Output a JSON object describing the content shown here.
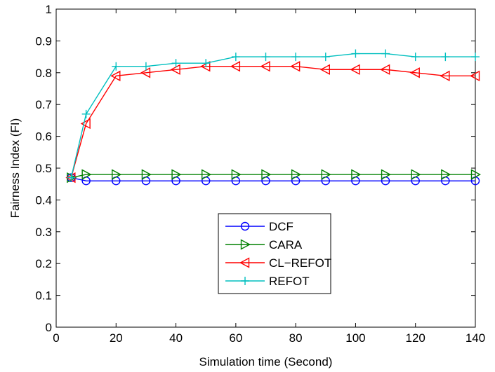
{
  "chart_data": {
    "type": "line",
    "title": "",
    "xlabel": "Simulation time (Second)",
    "ylabel": "Fairness Index (FI)",
    "xlim": [
      0,
      140
    ],
    "ylim": [
      0,
      1
    ],
    "x_ticks": [
      0,
      20,
      40,
      60,
      80,
      100,
      120,
      140
    ],
    "y_ticks": [
      0,
      0.1,
      0.2,
      0.3,
      0.4,
      0.5,
      0.6,
      0.7,
      0.8,
      0.9,
      1
    ],
    "x_tick_labels": [
      "0",
      "20",
      "40",
      "60",
      "80",
      "100",
      "120",
      "140"
    ],
    "y_tick_labels": [
      "0",
      "0.1",
      "0.2",
      "0.3",
      "0.4",
      "0.5",
      "0.6",
      "0.7",
      "0.8",
      "0.9",
      "1"
    ],
    "grid": false,
    "legend_position": "lower-center",
    "x": [
      5,
      10,
      20,
      30,
      40,
      50,
      60,
      70,
      80,
      90,
      100,
      110,
      120,
      130,
      140
    ],
    "series": [
      {
        "name": "DCF",
        "color": "#0000ff",
        "marker": "circle",
        "values": [
          0.47,
          0.46,
          0.46,
          0.46,
          0.46,
          0.46,
          0.46,
          0.46,
          0.46,
          0.46,
          0.46,
          0.46,
          0.46,
          0.46,
          0.46
        ]
      },
      {
        "name": "CARA",
        "color": "#008000",
        "marker": "triangle-right",
        "values": [
          0.47,
          0.48,
          0.48,
          0.48,
          0.48,
          0.48,
          0.48,
          0.48,
          0.48,
          0.48,
          0.48,
          0.48,
          0.48,
          0.48,
          0.48
        ]
      },
      {
        "name": "CL−REFOT",
        "color": "#ff0000",
        "marker": "triangle-left",
        "values": [
          0.47,
          0.64,
          0.79,
          0.8,
          0.81,
          0.82,
          0.82,
          0.82,
          0.82,
          0.81,
          0.81,
          0.81,
          0.8,
          0.79,
          0.79
        ]
      },
      {
        "name": "REFOT",
        "color": "#00bfbf",
        "marker": "plus",
        "values": [
          0.47,
          0.67,
          0.82,
          0.82,
          0.83,
          0.83,
          0.85,
          0.85,
          0.85,
          0.85,
          0.86,
          0.86,
          0.85,
          0.85,
          0.85
        ]
      }
    ]
  }
}
